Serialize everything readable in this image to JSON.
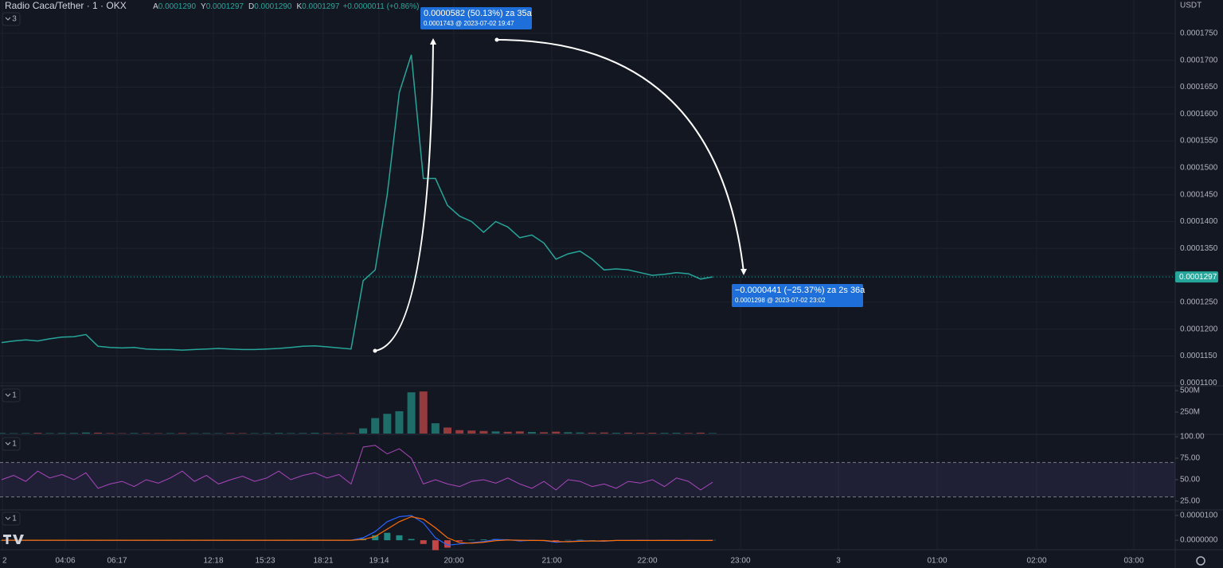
{
  "header": {
    "title": "Radio Caca/Tether · 1 · OKX",
    "ohlc": [
      {
        "letter": "A",
        "value": "0.0001290"
      },
      {
        "letter": "Y",
        "value": "0.0001297"
      },
      {
        "letter": "D",
        "value": "0.0001290"
      },
      {
        "letter": "K",
        "value": "0.0001297"
      }
    ],
    "change": "+0.0000011 (+0.86%)",
    "currency": "USDT"
  },
  "pane_counts": [
    "3",
    "1",
    "1",
    "1"
  ],
  "time_axis": [
    "2",
    "04:06",
    "06:17",
    "12:18",
    "15:23",
    "18:21",
    "19:14",
    "20:00",
    "21:00",
    "22:00",
    "23:00",
    "3",
    "01:00",
    "02:00",
    "03:00"
  ],
  "last_price_label": "0.0001297",
  "annotations": [
    {
      "text": "0.0000582 (50.13%) za 35a",
      "detail": "0.0001743 @ 2023-07-02  19:47"
    },
    {
      "text": "−0.0000441 (−25.37%) za 2s 36a",
      "detail": "0.0001298 @ 2023-07-02  23:02"
    }
  ],
  "chart_data": [
    {
      "type": "line",
      "color": "#26a69a",
      "grid": true,
      "ylim": [
        0.0001096,
        0.0001812
      ],
      "yticks": [
        {
          "value": 0.000175,
          "label": "0.0001750"
        },
        {
          "value": 0.00017,
          "label": "0.0001700"
        },
        {
          "value": 0.000165,
          "label": "0.0001650"
        },
        {
          "value": 0.00016,
          "label": "0.0001600"
        },
        {
          "value": 0.000155,
          "label": "0.0001550"
        },
        {
          "value": 0.00015,
          "label": "0.0001500"
        },
        {
          "value": 0.000145,
          "label": "0.0001450"
        },
        {
          "value": 0.00014,
          "label": "0.0001400"
        },
        {
          "value": 0.000135,
          "label": "0.0001350"
        },
        {
          "value": 0.00013,
          "label": "0.0001300"
        },
        {
          "value": 0.000125,
          "label": "0.0001250"
        },
        {
          "value": 0.00012,
          "label": "0.0001200"
        },
        {
          "value": 0.000115,
          "label": "0.0001150"
        },
        {
          "value": 0.00011,
          "label": "0.0001100"
        }
      ],
      "values": [
        0.0001175,
        0.0001178,
        0.000118,
        0.0001178,
        0.0001182,
        0.0001185,
        0.0001186,
        0.000119,
        0.0001168,
        0.0001166,
        0.0001165,
        0.0001166,
        0.0001163,
        0.0001162,
        0.0001162,
        0.0001161,
        0.0001162,
        0.0001163,
        0.0001164,
        0.0001163,
        0.0001162,
        0.0001162,
        0.0001163,
        0.0001164,
        0.0001166,
        0.0001168,
        0.0001169,
        0.0001167,
        0.0001165,
        0.0001163,
        0.000129,
        0.000131,
        0.000145,
        0.000164,
        0.000171,
        0.000148,
        0.000148,
        0.000143,
        0.000141,
        0.00014,
        0.000138,
        0.00014,
        0.000139,
        0.000137,
        0.0001375,
        0.000136,
        0.000133,
        0.000134,
        0.0001345,
        0.000133,
        0.000131,
        0.0001312,
        0.000131,
        0.0001305,
        0.00013,
        0.0001302,
        0.0001305,
        0.0001303,
        0.0001293,
        0.0001297
      ]
    },
    {
      "type": "bar",
      "up_color": "#26a69a",
      "down_color": "#ef5350",
      "ylim": [
        0,
        540000000
      ],
      "yticks": [
        {
          "value": 500000000,
          "label": "500M"
        },
        {
          "value": 250000000,
          "label": "250M"
        }
      ],
      "values": [
        6000000,
        4000000,
        5000000,
        8000000,
        5000000,
        6000000,
        7000000,
        12000000,
        10000000,
        5000000,
        4000000,
        6000000,
        5000000,
        4000000,
        5000000,
        6000000,
        4000000,
        5000000,
        4000000,
        6000000,
        5000000,
        4000000,
        5000000,
        7000000,
        5000000,
        6000000,
        8000000,
        5000000,
        4000000,
        6000000,
        60000000,
        180000000,
        230000000,
        260000000,
        480000000,
        490000000,
        120000000,
        70000000,
        40000000,
        35000000,
        30000000,
        25000000,
        20000000,
        25000000,
        18000000,
        15000000,
        22000000,
        15000000,
        12000000,
        10000000,
        12000000,
        8000000,
        10000000,
        8000000,
        9000000,
        7000000,
        8000000,
        6000000,
        10000000,
        5000000
      ]
    },
    {
      "type": "line",
      "color": "#ab47bc",
      "band": [
        30,
        70
      ],
      "ylim": [
        15.7,
        100
      ],
      "yticks": [
        {
          "value": 100,
          "label": "100.00"
        },
        {
          "value": 75,
          "label": "75.00"
        },
        {
          "value": 50,
          "label": "50.00"
        },
        {
          "value": 25,
          "label": "25.00"
        }
      ],
      "values": [
        50,
        55,
        48,
        60,
        52,
        56,
        50,
        58,
        40,
        45,
        48,
        42,
        50,
        46,
        52,
        60,
        48,
        55,
        45,
        50,
        54,
        48,
        52,
        60,
        50,
        55,
        58,
        52,
        56,
        45,
        88,
        90,
        80,
        86,
        75,
        45,
        50,
        45,
        42,
        48,
        50,
        46,
        52,
        45,
        40,
        48,
        38,
        50,
        48,
        42,
        45,
        40,
        48,
        46,
        50,
        42,
        52,
        48,
        38,
        47
      ]
    },
    {
      "type": "macd",
      "ylim": [
        -3.5e-06,
        1.16e-05
      ],
      "yticks": [
        {
          "value": 1e-05,
          "label": "0.0000100"
        },
        {
          "value": 0,
          "label": "0.0000000"
        }
      ],
      "series": [
        {
          "color": "#2962ff",
          "values": [
            0,
            0,
            0,
            0,
            0,
            0,
            0,
            0,
            0,
            0,
            0,
            0,
            0,
            0,
            0,
            0,
            0,
            0,
            0,
            0,
            0,
            0,
            0,
            0,
            0,
            0,
            0,
            0,
            0,
            0,
            1e-06,
            3.5e-06,
            7.5e-06,
            9.5e-06,
            1e-05,
            7e-06,
            1e-06,
            -2e-06,
            -1.5e-06,
            -1e-06,
            -5e-07,
            3e-07,
            2e-07,
            -3e-07,
            0,
            -2e-07,
            -8e-07,
            -5e-07,
            -2e-07,
            -3e-07,
            -4e-07,
            -1e-07,
            -1e-07,
            0,
            -1e-07,
            0,
            -1e-07,
            0,
            -1e-07,
            0
          ]
        },
        {
          "color": "#ff6d00",
          "values": [
            0,
            0,
            0,
            0,
            0,
            0,
            0,
            0,
            0,
            0,
            0,
            0,
            0,
            0,
            0,
            0,
            0,
            0,
            0,
            0,
            0,
            0,
            0,
            0,
            0,
            0,
            0,
            0,
            0,
            0,
            3e-07,
            1.5e-06,
            4.5e-06,
            7.5e-06,
            9.5e-06,
            8.5e-06,
            5e-06,
            1e-06,
            -1e-06,
            -1.2e-06,
            -8e-07,
            -2e-07,
            1e-07,
            0,
            -1e-07,
            -1e-07,
            -5e-07,
            -6e-07,
            -4e-07,
            -3e-07,
            -3e-07,
            -1e-07,
            -1e-07,
            -1e-07,
            -1e-07,
            -1e-07,
            -1e-07,
            -1e-07,
            -1e-07,
            -1e-07
          ]
        }
      ],
      "histogram": [
        0,
        0,
        0,
        0,
        0,
        0,
        0,
        0,
        0,
        0,
        0,
        0,
        0,
        0,
        0,
        0,
        0,
        0,
        0,
        0,
        0,
        0,
        0,
        0,
        0,
        0,
        0,
        0,
        0,
        0,
        7e-07,
        2e-06,
        3e-06,
        2e-06,
        5e-07,
        -1.5e-06,
        -4e-06,
        -3e-06,
        -5e-07,
        2e-07,
        3e-07,
        5e-07,
        1e-07,
        -3e-07,
        1e-07,
        -1e-07,
        -3e-07,
        1e-07,
        2e-07,
        0,
        -1e-07,
        0,
        0,
        1e-07,
        0,
        1e-07,
        0,
        1e-07,
        0,
        1e-07
      ]
    }
  ]
}
